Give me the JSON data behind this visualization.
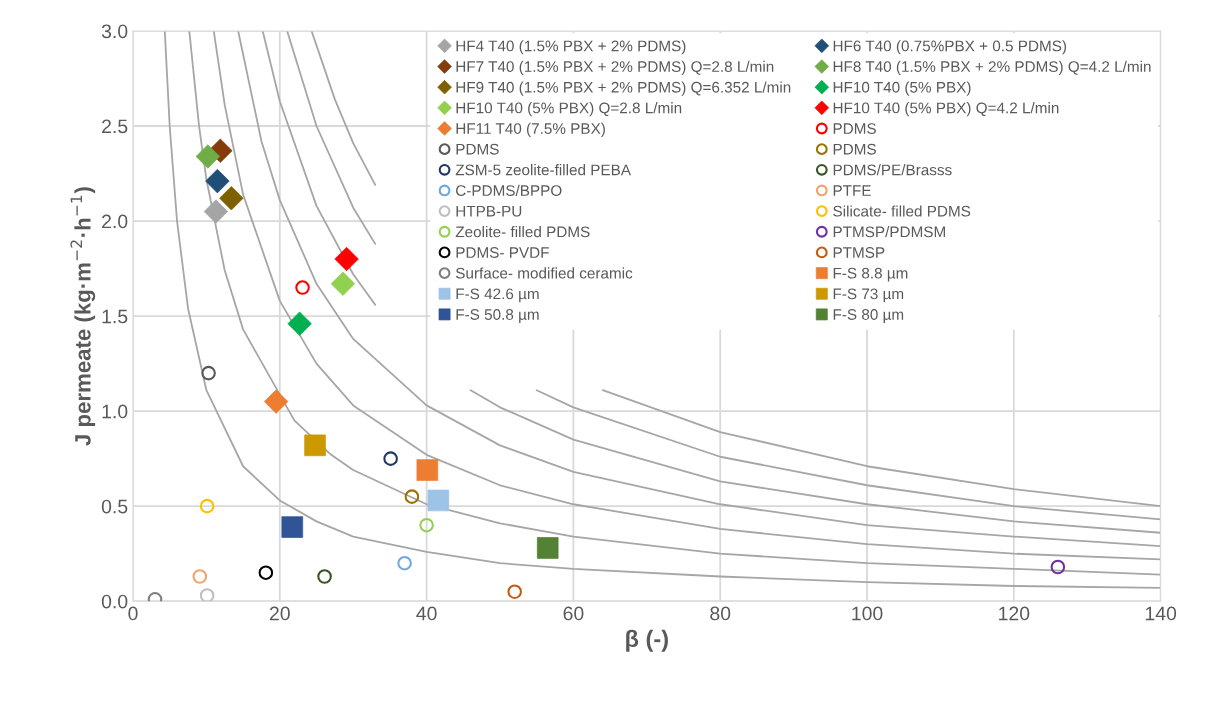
{
  "chart_data": {
    "type": "scatter",
    "xlabel": "β (-)",
    "ylabel": "J permeate (kg·m$^{−2}$·h$^{−1}$)",
    "xlim": [
      0,
      140
    ],
    "xticks": [
      0,
      20,
      40,
      60,
      80,
      100,
      120,
      140
    ],
    "ylim": [
      0,
      3
    ],
    "yticks": [
      {
        "value": 0,
        "label": "0.0"
      },
      {
        "value": 0.5,
        "label": "0.5"
      },
      {
        "value": 1,
        "label": "1.0"
      },
      {
        "value": 1.5,
        "label": "1.5"
      },
      {
        "value": 2,
        "label": "2.0"
      },
      {
        "value": 2.5,
        "label": "2.5"
      },
      {
        "value": 3,
        "label": "3.0"
      }
    ],
    "grid": true,
    "legend": "top right",
    "series": [
      {
        "type": "line",
        "color": "#a6a6a6",
        "marker": "none",
        "x": [
          4.33,
          5,
          6,
          7.5,
          10,
          15,
          20,
          25,
          30,
          40,
          50,
          60,
          80,
          100,
          120,
          140
        ],
        "values": [
          3.0,
          2.5,
          2.0,
          1.54,
          1.11,
          0.71,
          0.53,
          0.42,
          0.34,
          0.26,
          0.2,
          0.17,
          0.13,
          0.1,
          0.08,
          0.07
        ]
      },
      {
        "type": "line",
        "color": "#a6a6a6",
        "marker": "none",
        "x": [
          7.67,
          9,
          10,
          12.5,
          15,
          22,
          27,
          30,
          40,
          50,
          60,
          80,
          100,
          120,
          140
        ],
        "values": [
          3.0,
          2.5,
          2.22,
          1.74,
          1.43,
          0.95,
          0.77,
          0.69,
          0.51,
          0.41,
          0.34,
          0.25,
          0.2,
          0.17,
          0.14
        ]
      },
      {
        "type": "line",
        "color": "#a6a6a6",
        "marker": "none",
        "x": [
          11,
          12.5,
          15,
          20,
          25,
          30,
          40,
          50,
          60,
          80,
          100,
          120,
          140
        ],
        "values": [
          3.0,
          2.61,
          2.14,
          1.58,
          1.25,
          1.03,
          0.77,
          0.61,
          0.51,
          0.38,
          0.3,
          0.25,
          0.22
        ]
      },
      {
        "type": "line",
        "color": "#a6a6a6",
        "marker": "none",
        "x": [
          14.33,
          17.5,
          20,
          25,
          30,
          40,
          50,
          60,
          80,
          100,
          120,
          140
        ],
        "values": [
          3.0,
          2.42,
          2.11,
          1.67,
          1.38,
          1.03,
          0.82,
          0.68,
          0.51,
          0.4,
          0.34,
          0.29
        ]
      },
      {
        "type": "line",
        "color": "#a6a6a6",
        "marker": "none",
        "x": [
          17.67,
          20,
          25,
          30,
          33,
          40,
          46,
          50,
          60,
          80,
          100,
          120,
          140
        ],
        "values": [
          3.0,
          2.63,
          2.08,
          1.72,
          1.56,
          null,
          1.11,
          1.02,
          0.85,
          0.63,
          0.51,
          0.42,
          0.36
        ]
      },
      {
        "type": "line",
        "color": "#a6a6a6",
        "marker": "none",
        "x": [
          21,
          25,
          30,
          33,
          40,
          50,
          55,
          60,
          80,
          100,
          120,
          140
        ],
        "values": [
          3.0,
          2.5,
          2.07,
          1.88,
          null,
          null,
          1.11,
          1.02,
          0.76,
          0.61,
          0.5,
          0.43
        ]
      },
      {
        "type": "line",
        "color": "#a6a6a6",
        "marker": "none",
        "x": [
          24.33,
          27.5,
          30,
          33,
          40,
          50,
          60,
          64,
          80,
          100,
          120,
          140
        ],
        "values": [
          3.0,
          2.64,
          2.41,
          2.19,
          null,
          null,
          null,
          1.11,
          0.89,
          0.71,
          0.59,
          0.5
        ]
      },
      {
        "name": "HF4 T40 (1.5% PBX + 2% PDMS)",
        "marker": "diamond",
        "color": "#a5a5a5",
        "x": [
          11.3
        ],
        "values": [
          2.05
        ]
      },
      {
        "name": "HF6 T40 (0.75%PBX + 0.5 PDMS)",
        "marker": "diamond",
        "color": "#1f4e79",
        "x": [
          11.5
        ],
        "values": [
          2.21
        ]
      },
      {
        "name": "HF7 T40 (1.5% PBX + 2% PDMS) Q=2.8 L/min",
        "marker": "diamond",
        "color": "#843c0c",
        "x": [
          11.9
        ],
        "values": [
          2.37
        ]
      },
      {
        "name": "HF8 T40 (1.5% PBX + 2% PDMS) Q=4.2 L/min",
        "marker": "diamond",
        "color": "#70ad47",
        "x": [
          10.2
        ],
        "values": [
          2.34
        ]
      },
      {
        "name": "HF9 T40 (1.5% PBX + 2% PDMS) Q=6.352 L/min",
        "marker": "diamond",
        "color": "#7f6000",
        "x": [
          13.4
        ],
        "values": [
          2.12
        ]
      },
      {
        "name": "HF10 T40 (5% PBX)",
        "marker": "diamond",
        "color": "#00b050",
        "x": [
          22.7
        ],
        "values": [
          1.46
        ]
      },
      {
        "name": "HF10 T40 (5% PBX) Q=2.8 L/min",
        "marker": "diamond",
        "color": "#92d050",
        "x": [
          28.6
        ],
        "values": [
          1.67
        ]
      },
      {
        "name": "HF10 T40 (5% PBX) Q=4.2 L/min",
        "marker": "diamond",
        "color": "#ff0000",
        "x": [
          29.1
        ],
        "values": [
          1.8
        ]
      },
      {
        "name": "HF11 T40 (7.5% PBX)",
        "marker": "diamond",
        "color": "#ed7d31",
        "x": [
          19.5
        ],
        "values": [
          1.05
        ]
      },
      {
        "name": "PDMS",
        "marker": "circle",
        "color": "#ff0000",
        "x": [
          23.1
        ],
        "values": [
          1.65
        ]
      },
      {
        "name": "PDMS",
        "marker": "circle",
        "color": "#595959",
        "x": [
          10.3
        ],
        "values": [
          1.2
        ]
      },
      {
        "name": "PDMS",
        "marker": "circle",
        "color": "#997300",
        "x": [
          38.0
        ],
        "values": [
          0.55
        ]
      },
      {
        "name": "ZSM-5 zeolite-filled PEBA",
        "marker": "circle",
        "color": "#203864",
        "x": [
          35.1
        ],
        "values": [
          0.75
        ]
      },
      {
        "name": "PDMS/PE/Brasss",
        "marker": "circle",
        "color": "#375623",
        "x": [
          26.1
        ],
        "values": [
          0.13
        ]
      },
      {
        "name": "C-PDMS/BPPO",
        "marker": "circle",
        "color": "#6fa8dc",
        "x": [
          37.0
        ],
        "values": [
          0.2
        ]
      },
      {
        "name": "PTFE",
        "marker": "circle",
        "color": "#f4a36b",
        "x": [
          9.1
        ],
        "values": [
          0.13
        ]
      },
      {
        "name": "HTPB-PU",
        "marker": "circle",
        "color": "#bfbfbf",
        "x": [
          10.1
        ],
        "values": [
          0.03
        ]
      },
      {
        "name": "Silicate- filled PDMS",
        "marker": "circle",
        "color": "#ffc000",
        "x": [
          10.1
        ],
        "values": [
          0.5
        ]
      },
      {
        "name": "Zeolite- filled PDMS",
        "marker": "circle",
        "color": "#92d050",
        "x": [
          40.0
        ],
        "values": [
          0.4
        ]
      },
      {
        "name": "PTMSP/PDMSM",
        "marker": "circle",
        "color": "#7030a0",
        "x": [
          126.0
        ],
        "values": [
          0.18
        ]
      },
      {
        "name": "PDMS- PVDF",
        "marker": "circle",
        "color": "#000000",
        "x": [
          18.1
        ],
        "values": [
          0.15
        ]
      },
      {
        "name": "PTMSP",
        "marker": "circle",
        "color": "#c55a11",
        "x": [
          52.0
        ],
        "values": [
          0.05
        ]
      },
      {
        "name": "Surface- modified ceramic",
        "marker": "circle",
        "color": "#7f7f7f",
        "x": [
          3.0
        ],
        "values": [
          0.01
        ]
      },
      {
        "name": "F-S 8.8 µm",
        "marker": "square",
        "color": "#ed7d31",
        "x": [
          40.1
        ],
        "values": [
          0.69
        ]
      },
      {
        "name": "F-S 42.6 µm",
        "marker": "square",
        "color": "#9dc3e6",
        "x": [
          41.6
        ],
        "values": [
          0.53
        ]
      },
      {
        "name": "F-S 73 µm",
        "marker": "square",
        "color": "#cc9900",
        "x": [
          24.8
        ],
        "values": [
          0.82
        ]
      },
      {
        "name": "F-S 50.8 µm",
        "marker": "square",
        "color": "#2f5597",
        "x": [
          21.7
        ],
        "values": [
          0.39
        ]
      },
      {
        "name": "F-S 80 µm",
        "marker": "square",
        "color": "#548235",
        "x": [
          56.5
        ],
        "values": [
          0.28
        ]
      }
    ]
  }
}
